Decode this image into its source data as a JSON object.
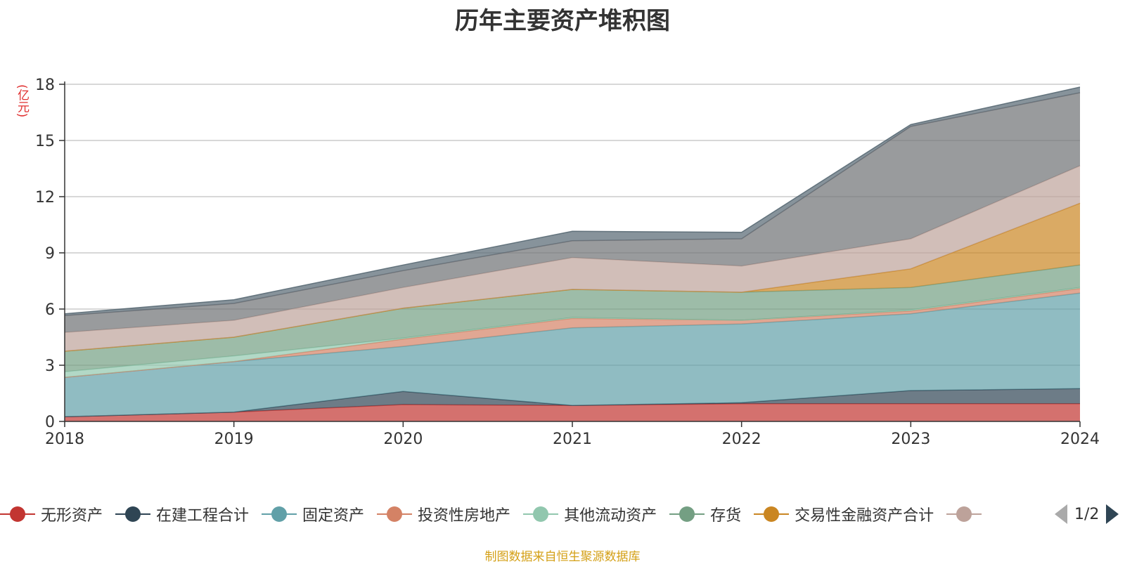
{
  "chart_data": {
    "type": "area",
    "title": "历年主要资产堆积图",
    "unit_label": "(亿元)",
    "x": [
      "2018",
      "2019",
      "2020",
      "2021",
      "2022",
      "2023",
      "2024"
    ],
    "y_ticks": [
      "0",
      "3",
      "6",
      "9",
      "12",
      "15",
      "18"
    ],
    "ylim": [
      0,
      18
    ],
    "grid": true,
    "stacked": true,
    "legend_position": "bottom",
    "series": [
      {
        "name": "无形资产",
        "color": "#c23531",
        "values": [
          0.25,
          0.5,
          0.9,
          0.85,
          0.95,
          0.95,
          0.95
        ]
      },
      {
        "name": "在建工程合计",
        "color": "#2f4554",
        "values": [
          0.0,
          0.0,
          0.7,
          0.0,
          0.05,
          0.7,
          0.8
        ]
      },
      {
        "name": "固定资产",
        "color": "#61a0a8",
        "values": [
          2.1,
          2.7,
          2.4,
          4.15,
          4.2,
          4.1,
          5.1
        ]
      },
      {
        "name": "投资性房地产",
        "color": "#d48265",
        "values": [
          0.0,
          0.0,
          0.4,
          0.5,
          0.2,
          0.15,
          0.25
        ]
      },
      {
        "name": "其他流动资产",
        "color": "#91c7ae",
        "values": [
          0.3,
          0.3,
          0.05,
          0.05,
          0.0,
          0.05,
          0.05
        ]
      },
      {
        "name": "存货",
        "color": "#749f83",
        "values": [
          1.1,
          1.0,
          1.6,
          1.5,
          1.5,
          1.2,
          1.2
        ]
      },
      {
        "name": "交易性金融资产合计",
        "color": "#ca8622",
        "values": [
          0.0,
          0.0,
          0.0,
          0.0,
          0.0,
          1.0,
          3.3
        ]
      },
      {
        "name": "",
        "color": "#bda29a",
        "values": [
          1.0,
          0.9,
          1.1,
          1.7,
          1.4,
          1.6,
          2.0
        ]
      },
      {
        "name": "",
        "color": "#6e7074",
        "values": [
          0.9,
          0.9,
          0.9,
          0.9,
          1.45,
          6.0,
          3.9
        ]
      },
      {
        "name": "",
        "color": "#546570",
        "values": [
          0.1,
          0.2,
          0.3,
          0.5,
          0.35,
          0.1,
          0.3
        ]
      }
    ],
    "source": "制图数据来自恒生聚源数据库"
  },
  "legend": {
    "items": [
      {
        "name": "无形资产",
        "color": "#c23531"
      },
      {
        "name": "在建工程合计",
        "color": "#2f4554"
      },
      {
        "name": "固定资产",
        "color": "#61a0a8"
      },
      {
        "name": "投资性房地产",
        "color": "#d48265"
      },
      {
        "name": "其他流动资产",
        "color": "#91c7ae"
      },
      {
        "name": "存货",
        "color": "#749f83"
      },
      {
        "name": "交易性金融资产合计",
        "color": "#ca8622"
      },
      {
        "name": "",
        "color": "#bda29a"
      }
    ],
    "page": "1/2"
  }
}
